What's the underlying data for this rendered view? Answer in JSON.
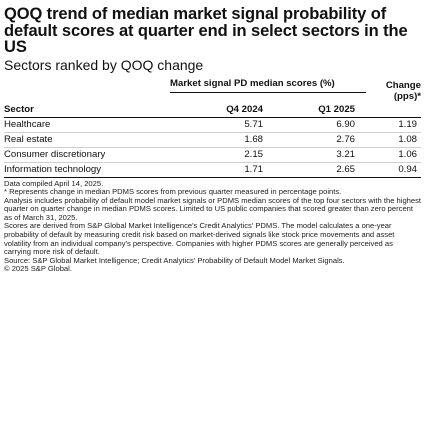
{
  "title": "QOQ trend of median market signal probability of default scores at quarter end in select sectors in the US",
  "subtitle": "Sectors ranked by QOQ change",
  "chart_data": {
    "type": "table",
    "group_header": "Market signal PD median scores (%)",
    "columns": [
      "Sector",
      "Q4 2024",
      "Q1 2025",
      "Change (pps)*"
    ],
    "change_header_line1": "Change",
    "change_header_line2": "(pps)*",
    "rows": [
      {
        "sector": "Healthcare",
        "q4_2024": "5.71",
        "q1_2025": "6.90",
        "change": "1.19"
      },
      {
        "sector": "Real estate",
        "q4_2024": "1.68",
        "q1_2025": "2.76",
        "change": "1.08"
      },
      {
        "sector": "Consumer discretionary",
        "q4_2024": "2.15",
        "q1_2025": "3.21",
        "change": "1.06"
      },
      {
        "sector": "Information technology",
        "q4_2024": "1.71",
        "q1_2025": "2.65",
        "change": "0.94"
      }
    ]
  },
  "notes": {
    "compiled": "Data compiled April 14, 2025.",
    "asterisk": "* Represents change in median PDMS scores from previous quarter measured in percentage points.",
    "analysis": "Analysis includes probability of default model market signals or PDMS median scores of the top four sectors with the highest quarter on quarter change in median PDMS scores. Limited to US public companies that scored greater than zero percent as of March 31, 2025.",
    "scores": "Scores are derived from S&P Global Market Intelligence's Credit Analytics' PDMS. The model calculates a one-year probability of default by measuring credit risk based on market-derived signals like stock price movements and asset volatility from an individual company's perspective. Companies with higher PDMS scores are generally perceived as carrying more risk of default.",
    "source": "Source: S&P Global Market Intelligence; Credit Analytics' Probability of Default Model Market Signals.",
    "copyright": "© 2025 S&P Global."
  }
}
